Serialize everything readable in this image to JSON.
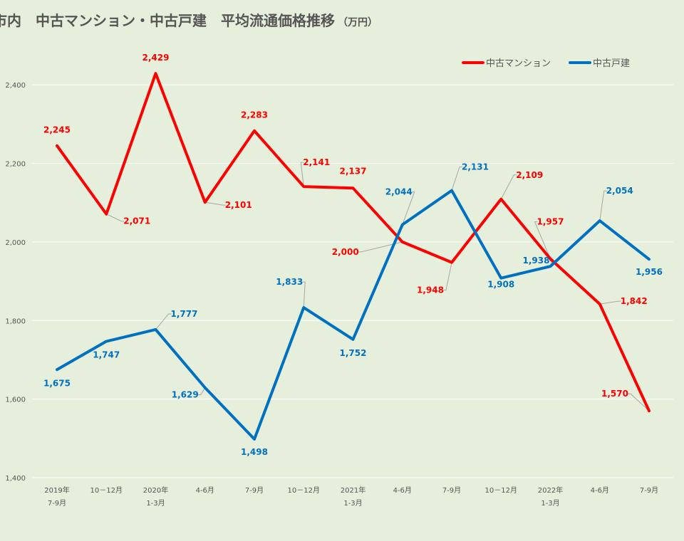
{
  "chart_data": {
    "type": "line",
    "title": "福山市内　中古マンション・中古戸建　平均流通価格推移",
    "unit_label": "（万円）",
    "categories": [
      [
        "2019年",
        "7-9月"
      ],
      [
        "10－12月"
      ],
      [
        "2020年",
        "1-3月"
      ],
      [
        "4-6月"
      ],
      [
        "7-9月"
      ],
      [
        "10－12月"
      ],
      [
        "2021年",
        "1-3月"
      ],
      [
        "4-6月"
      ],
      [
        "7-9月"
      ],
      [
        "10－12月"
      ],
      [
        "2022年",
        "1-3月"
      ],
      [
        "4-6月"
      ],
      [
        "7-9月"
      ]
    ],
    "ylim": [
      1400,
      2500
    ],
    "yticks": [
      1400,
      1600,
      1800,
      2000,
      2200,
      2400
    ],
    "ytick_labels": [
      "1,400",
      "1,600",
      "1,800",
      "2,000",
      "2,200",
      "2,400"
    ],
    "grid": true,
    "legend_position": "top-right",
    "series": [
      {
        "name": "中古マンション",
        "color": "#ff0000",
        "values": [
          2245,
          2071,
          2429,
          2101,
          2283,
          2141,
          2137,
          2000,
          1948,
          2109,
          1957,
          1842,
          1570
        ],
        "labels": [
          "2,245",
          "2,071",
          "2,429",
          "2,101",
          "2,283",
          "2,141",
          "2,137",
          "2,000",
          "1,948",
          "2,109",
          "1,957",
          "1,842",
          "1,570"
        ]
      },
      {
        "name": "中古戸建",
        "color": "#0070c0",
        "values": [
          1675,
          1747,
          1777,
          1629,
          1498,
          1833,
          1752,
          2044,
          2131,
          1908,
          1938,
          2054,
          1956
        ],
        "labels": [
          "1,675",
          "1,747",
          "1,777",
          "1,629",
          "1,498",
          "1,833",
          "1,752",
          "2,044",
          "2,131",
          "1,908",
          "1,938",
          "2,054",
          "1,956"
        ]
      }
    ]
  }
}
